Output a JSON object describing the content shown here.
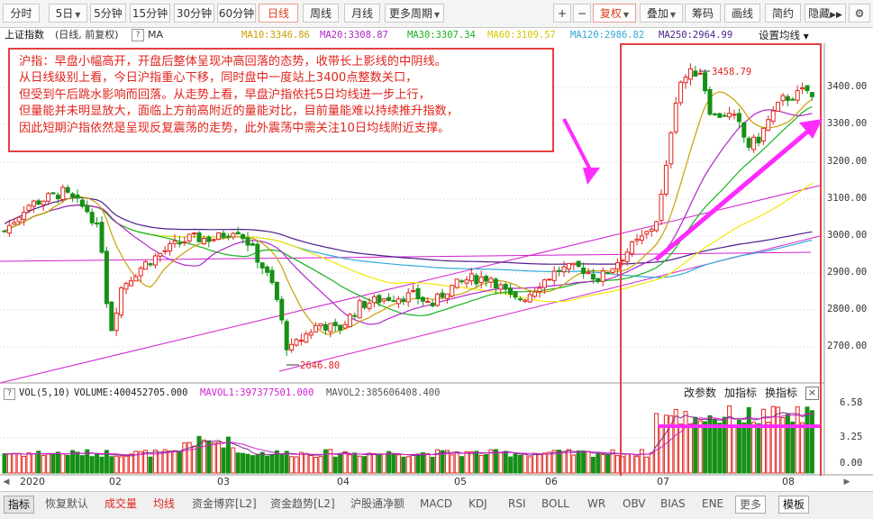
{
  "toolbar": {
    "left_buttons": [
      "分时",
      "5日",
      "5分钟",
      "15分钟",
      "30分钟",
      "60分钟",
      "日线",
      "周线",
      "月线",
      "更多周期"
    ],
    "right_buttons": [
      "+",
      "−",
      "复权",
      "叠加",
      "筹码",
      "画线",
      "简约",
      "隐藏"
    ],
    "active": "日线",
    "right_active": "复权"
  },
  "info": {
    "title": "上证指数",
    "subtitle": "(日线, 前复权)",
    "help": "?",
    "ma_label": "MA",
    "ma10": "MA10:3346.86",
    "ma20": "MA20:3308.87",
    "ma30": "MA30:3307.34",
    "ma60": "MA60:3109.57",
    "ma120": "MA120:2986.82",
    "ma250": "MA250:2964.99",
    "settings": "设置均线",
    "colors": {
      "ma10": "#e0a800",
      "ma20": "#b026c9",
      "ma30": "#17b21e",
      "ma60": "#f2e600",
      "ma120": "#2fa8d8",
      "ma250": "#4b1d8a"
    }
  },
  "annotation": {
    "lines": [
      "沪指：早盘小幅高开，开盘后整体呈现冲高回落的态势，收带长上影线的中阴线。",
      "从日线级别上看，今日沪指重心下移，同时盘中一度站上3400点整数关口，",
      "但受到午后跳水影响而回落。从走势上看，早盘沪指依托5日均线进一步上行，",
      "但量能并未明显放大，面临上方前高附近的量能对比，目前量能难以持续推升指数，",
      "因此短期沪指依然是呈现反复震荡的走势，此外震荡中需关注10日均线附近支撑。"
    ]
  },
  "price_axis": [
    "3400.00",
    "3300.00",
    "3200.00",
    "3100.00",
    "3000.00",
    "2900.00",
    "2800.00",
    "2700.00"
  ],
  "markers": {
    "high": "3458.79",
    "low": "2646.80"
  },
  "volume": {
    "help": "?",
    "label": "VOL(5,10)",
    "volume": "VOLUME:400452705.000",
    "mavol1": "MAVOL1:397377501.000",
    "mavol2": "MAVOL2:385606408.400",
    "actions": [
      "改参数",
      "加指标",
      "换指标"
    ],
    "close": "×",
    "axis": [
      "6.58",
      "3.25",
      "0.00"
    ]
  },
  "months": [
    "2020",
    "02",
    "03",
    "04",
    "05",
    "06",
    "07",
    "08"
  ],
  "bottom_tabs": [
    "指标",
    "恢复默认",
    "成交量",
    "均线",
    "资金博弈[L2]",
    "资金趋势[L2]",
    "沪股通净额",
    "MACD",
    "KDJ",
    "RSI",
    "BOLL",
    "WR",
    "OBV",
    "BIAS",
    "ENE",
    "更多",
    "模板"
  ],
  "bottom_active": [
    "成交量",
    "均线"
  ],
  "chart_data": {
    "type": "candlestick",
    "title": "上证指数 (日线, 前复权)",
    "ylim": [
      2646.8,
      3458.79
    ],
    "annotations": [
      "3458.79",
      "2646.80"
    ]
  }
}
